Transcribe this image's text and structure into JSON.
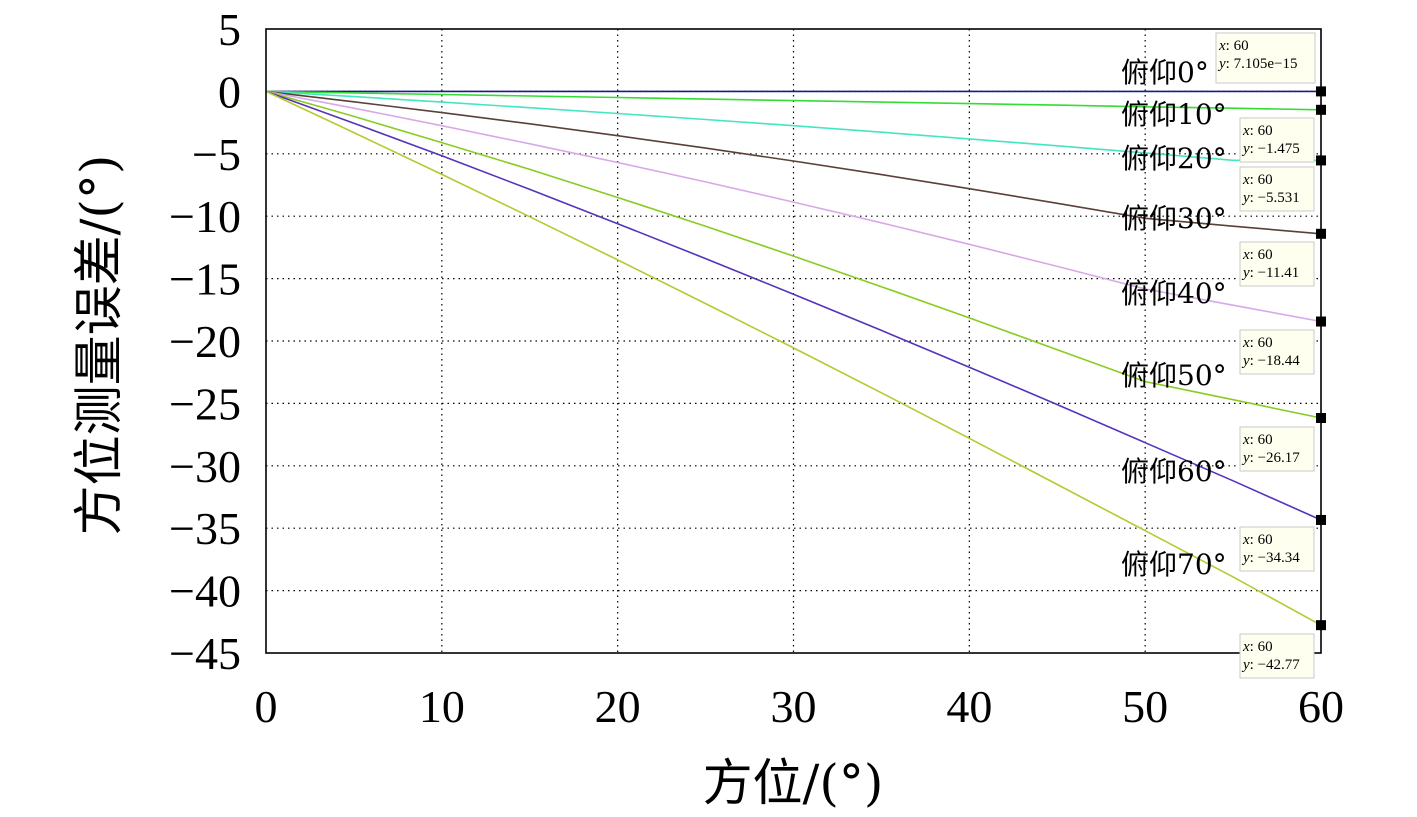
{
  "chart_data": {
    "type": "line",
    "title": "",
    "xlabel": "方位/(°)",
    "ylabel": "方位测量误差/(°)",
    "xlim": [
      0,
      60
    ],
    "ylim": [
      -45,
      5
    ],
    "xticks": [
      0,
      10,
      20,
      30,
      40,
      50,
      60
    ],
    "yticks": [
      5,
      0,
      -5,
      -10,
      -15,
      -20,
      -25,
      -30,
      -35,
      -40,
      -45
    ],
    "xtick_labels": [
      "0",
      "10",
      "20",
      "30",
      "40",
      "50",
      "60"
    ],
    "ytick_labels": [
      "5",
      "0",
      "−5",
      "−10",
      "−15",
      "−20",
      "−25",
      "−30",
      "−35",
      "−40",
      "−45"
    ],
    "grid": true,
    "x": [
      0,
      5,
      10,
      15,
      20,
      25,
      30,
      35,
      40,
      45,
      50,
      55,
      60
    ],
    "series": [
      {
        "name": "俯仰0°",
        "label": "俯仰0°",
        "color": "#1a1a8c",
        "values": [
          0,
          0,
          0,
          0,
          0,
          0,
          0,
          0,
          0,
          0,
          0,
          0,
          0
        ],
        "tip": {
          "x": "60",
          "y": "7.105e−15"
        }
      },
      {
        "name": "俯仰10°",
        "label": "俯仰10°",
        "color": "#33dd33",
        "values": [
          0,
          -0.12,
          -0.25,
          -0.37,
          -0.49,
          -0.62,
          -0.74,
          -0.86,
          -0.98,
          -1.1,
          -1.23,
          -1.35,
          -1.475
        ],
        "tip": {
          "x": "60",
          "y": "−1.475"
        }
      },
      {
        "name": "俯仰20°",
        "label": "俯仰20°",
        "color": "#44e6c0",
        "values": [
          0,
          -0.42,
          -0.86,
          -1.31,
          -1.77,
          -2.25,
          -2.75,
          -3.27,
          -3.81,
          -4.36,
          -4.93,
          -5.52,
          -5.531
        ],
        "tip": {
          "x": "60",
          "y": "−5.531"
        }
      },
      {
        "name": "俯仰30°",
        "label": "俯仰30°",
        "color": "#5a4038",
        "values": [
          0,
          -0.83,
          -1.7,
          -2.6,
          -3.55,
          -4.54,
          -5.58,
          -6.67,
          -7.8,
          -8.97,
          -10.17,
          -10.8,
          -11.41
        ],
        "tip": {
          "x": "60",
          "y": "−11.41"
        }
      },
      {
        "name": "俯仰40°",
        "label": "俯仰40°",
        "color": "#d8a8e8",
        "values": [
          0,
          -1.35,
          -2.75,
          -4.2,
          -5.7,
          -7.25,
          -8.87,
          -10.53,
          -12.25,
          -14.02,
          -15.83,
          -17.13,
          -18.44
        ],
        "tip": {
          "x": "60",
          "y": "−18.44"
        }
      },
      {
        "name": "俯仰50°",
        "label": "俯仰50°",
        "color": "#88cc22",
        "values": [
          0,
          -2.0,
          -4.1,
          -6.25,
          -8.5,
          -10.8,
          -13.2,
          -15.65,
          -18.15,
          -20.7,
          -23.25,
          -24.7,
          -26.17
        ],
        "tip": {
          "x": "60",
          "y": "−26.17"
        }
      },
      {
        "name": "俯仰60°",
        "label": "俯仰60°",
        "color": "#5533bb",
        "values": [
          0,
          -2.55,
          -5.15,
          -7.85,
          -10.6,
          -13.4,
          -16.25,
          -19.15,
          -22.1,
          -25.1,
          -28.15,
          -31.2,
          -34.34
        ],
        "tip": {
          "x": "60",
          "y": "−34.34"
        }
      },
      {
        "name": "俯仰70°",
        "label": "俯仰70°",
        "color": "#b8c830",
        "values": [
          0,
          -3.3,
          -6.65,
          -10.05,
          -13.5,
          -17.0,
          -20.55,
          -24.15,
          -27.8,
          -31.5,
          -35.2,
          -38.9,
          -42.77
        ],
        "tip": {
          "x": "60",
          "y": "−42.77"
        }
      }
    ]
  }
}
